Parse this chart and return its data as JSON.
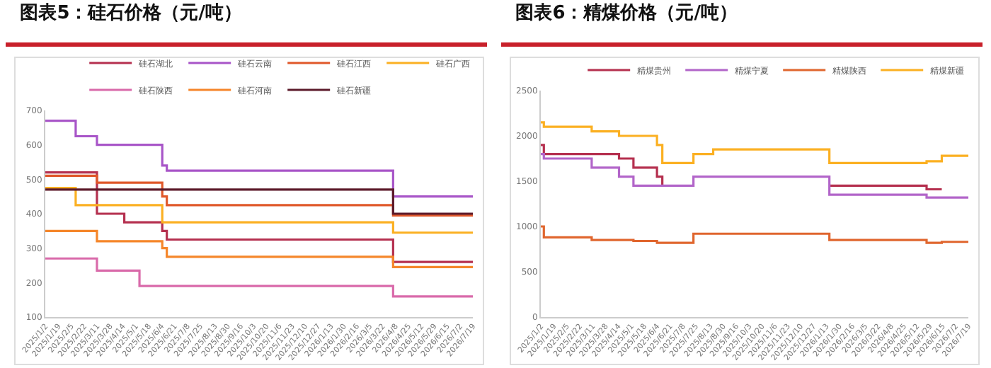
{
  "chart_data": [
    {
      "type": "step",
      "title": "图表5：硅石价格（元/吨）",
      "legend": "top",
      "marker": "none",
      "xlim": [
        "2025-01-02",
        "2026-07-19"
      ],
      "ylim": [
        100,
        700
      ],
      "yticks": [
        100,
        200,
        300,
        400,
        500,
        600,
        700
      ],
      "xticks": [
        {
          "value": "2025-01-02",
          "label": "2025/1/2"
        },
        {
          "value": "2025-01-19",
          "label": "2025/1/19"
        },
        {
          "value": "2025-02-05",
          "label": "2025/2/5"
        },
        {
          "value": "2025-02-22",
          "label": "2025/2/22"
        },
        {
          "value": "2025-03-11",
          "label": "2025/3/11"
        },
        {
          "value": "2025-03-28",
          "label": "2025/3/28"
        },
        {
          "value": "2025-04-14",
          "label": "2025/4/14"
        },
        {
          "value": "2025-05-01",
          "label": "2025/5/1"
        },
        {
          "value": "2025-05-18",
          "label": "2025/5/18"
        },
        {
          "value": "2025-06-04",
          "label": "2025/6/4"
        },
        {
          "value": "2025-06-21",
          "label": "2025/6/21"
        },
        {
          "value": "2025-07-08",
          "label": "2025/7/8"
        },
        {
          "value": "2025-07-25",
          "label": "2025/7/25"
        },
        {
          "value": "2025-08-13",
          "label": "2025/8/13"
        },
        {
          "value": "2025-08-30",
          "label": "2025/8/30"
        },
        {
          "value": "2025-09-16",
          "label": "2025/9/16"
        },
        {
          "value": "2025-10-03",
          "label": "2025/10/3"
        },
        {
          "value": "2025-10-20",
          "label": "2025/10/20"
        },
        {
          "value": "2025-11-06",
          "label": "2025/11/6"
        },
        {
          "value": "2025-11-23",
          "label": "2025/11/23"
        },
        {
          "value": "2025-12-10",
          "label": "2025/12/10"
        },
        {
          "value": "2025-12-27",
          "label": "2025/12/27"
        },
        {
          "value": "2026-01-13",
          "label": "2026/1/13"
        },
        {
          "value": "2026-01-30",
          "label": "2026/1/30"
        },
        {
          "value": "2026-02-16",
          "label": "2026/2/16"
        },
        {
          "value": "2026-03-05",
          "label": "2026/3/5"
        },
        {
          "value": "2026-03-22",
          "label": "2026/3/22"
        },
        {
          "value": "2026-04-08",
          "label": "2026/4/8"
        },
        {
          "value": "2026-04-25",
          "label": "2026/4/25"
        },
        {
          "value": "2026-05-12",
          "label": "2026/5/12"
        },
        {
          "value": "2026-05-29",
          "label": "2026/5/29"
        },
        {
          "value": "2026-06-15",
          "label": "2026/6/15"
        },
        {
          "value": "2026-07-02",
          "label": "2026/7/2"
        },
        {
          "value": "2026-07-19",
          "label": "2026/7/19"
        }
      ],
      "series": [
        {
          "name": "硅石湖北",
          "color": "#b5304f",
          "x": [
            "2025-01-02",
            "2025-03-11",
            "2025-04-16",
            "2025-06-05",
            "2025-06-11",
            "2026-04-05",
            "2026-07-19"
          ],
          "values": [
            520,
            400,
            375,
            350,
            325,
            260,
            260
          ]
        },
        {
          "name": "硅石云南",
          "color": "#a855c8",
          "x": [
            "2025-01-02",
            "2025-02-11",
            "2025-03-11",
            "2025-06-05",
            "2025-06-11",
            "2026-04-05",
            "2026-07-19"
          ],
          "values": [
            670,
            625,
            600,
            540,
            525,
            450,
            450
          ]
        },
        {
          "name": "硅石江西",
          "color": "#e0582a",
          "x": [
            "2025-01-02",
            "2025-03-11",
            "2025-06-05",
            "2025-06-11",
            "2026-04-05",
            "2026-07-19"
          ],
          "values": [
            510,
            490,
            450,
            425,
            395,
            395
          ]
        },
        {
          "name": "硅石广西",
          "color": "#fbb022",
          "x": [
            "2025-01-02",
            "2025-02-11",
            "2025-06-05",
            "2026-04-05",
            "2026-07-19"
          ],
          "values": [
            475,
            425,
            375,
            345,
            345
          ]
        },
        {
          "name": "硅石陕西",
          "color": "#d96aaa",
          "x": [
            "2025-01-02",
            "2025-03-11",
            "2025-05-06",
            "2026-04-05",
            "2026-07-19"
          ],
          "values": [
            270,
            235,
            190,
            160,
            160
          ]
        },
        {
          "name": "硅石河南",
          "color": "#f5862a",
          "x": [
            "2025-01-02",
            "2025-03-11",
            "2025-06-05",
            "2025-06-11",
            "2026-04-05",
            "2026-07-19"
          ],
          "values": [
            350,
            320,
            300,
            275,
            245,
            245
          ]
        },
        {
          "name": "硅石新疆",
          "color": "#5c1a2a",
          "x": [
            "2025-01-02",
            "2026-04-05",
            "2026-07-19"
          ],
          "values": [
            470,
            400,
            400
          ]
        }
      ]
    },
    {
      "type": "step",
      "title": "图表6：精煤价格（元/吨）",
      "legend": "top",
      "marker": "none",
      "xlim": [
        "2025-01-02",
        "2026-07-19"
      ],
      "ylim": [
        0,
        2500
      ],
      "yticks": [
        0,
        500,
        1000,
        1500,
        2000,
        2500
      ],
      "xticks": [
        {
          "value": "2025-01-02",
          "label": "2025/1/2"
        },
        {
          "value": "2025-01-19",
          "label": "2025/1/19"
        },
        {
          "value": "2025-02-05",
          "label": "2025/2/5"
        },
        {
          "value": "2025-02-22",
          "label": "2025/2/22"
        },
        {
          "value": "2025-03-11",
          "label": "2025/3/11"
        },
        {
          "value": "2025-03-28",
          "label": "2025/3/28"
        },
        {
          "value": "2025-04-14",
          "label": "2025/4/14"
        },
        {
          "value": "2025-05-01",
          "label": "2025/5/1"
        },
        {
          "value": "2025-05-18",
          "label": "2025/5/18"
        },
        {
          "value": "2025-06-04",
          "label": "2025/6/4"
        },
        {
          "value": "2025-06-21",
          "label": "2025/6/21"
        },
        {
          "value": "2025-07-08",
          "label": "2025/7/8"
        },
        {
          "value": "2025-07-25",
          "label": "2025/7/25"
        },
        {
          "value": "2025-08-13",
          "label": "2025/8/13"
        },
        {
          "value": "2025-08-30",
          "label": "2025/8/30"
        },
        {
          "value": "2025-09-16",
          "label": "2025/9/16"
        },
        {
          "value": "2025-10-03",
          "label": "2025/10/3"
        },
        {
          "value": "2025-10-20",
          "label": "2025/10/20"
        },
        {
          "value": "2025-11-06",
          "label": "2025/11/6"
        },
        {
          "value": "2025-11-23",
          "label": "2025/11/23"
        },
        {
          "value": "2025-12-10",
          "label": "2025/12/10"
        },
        {
          "value": "2025-12-27",
          "label": "2025/12/27"
        },
        {
          "value": "2026-01-13",
          "label": "2026/1/13"
        },
        {
          "value": "2026-01-30",
          "label": "2026/1/30"
        },
        {
          "value": "2026-02-16",
          "label": "2026/2/16"
        },
        {
          "value": "2026-03-05",
          "label": "2026/3/5"
        },
        {
          "value": "2026-03-22",
          "label": "2026/3/22"
        },
        {
          "value": "2026-04-08",
          "label": "2026/4/8"
        },
        {
          "value": "2026-04-25",
          "label": "2026/4/25"
        },
        {
          "value": "2026-05-12",
          "label": "2026/5/12"
        },
        {
          "value": "2026-05-29",
          "label": "2026/5/29"
        },
        {
          "value": "2026-06-15",
          "label": "2026/6/15"
        },
        {
          "value": "2026-07-02",
          "label": "2026/7/2"
        },
        {
          "value": "2026-07-19",
          "label": "2026/7/19"
        }
      ],
      "series": [
        {
          "name": "精煤贵州",
          "color": "#b5304f",
          "x": [
            "2025-01-02",
            "2025-01-06",
            "2025-04-15",
            "2025-05-04",
            "2025-06-04",
            "2025-06-11",
            "2025-07-22",
            "2026-01-17",
            "2026-05-25",
            "2026-06-14"
          ],
          "values": [
            1900,
            1800,
            1750,
            1650,
            1550,
            1450,
            null,
            1450,
            1410,
            1410
          ]
        },
        {
          "name": "精煤宁夏",
          "color": "#b265c9",
          "x": [
            "2025-01-02",
            "2025-01-06",
            "2025-03-10",
            "2025-04-15",
            "2025-05-04",
            "2025-07-22",
            "2026-01-17",
            "2026-05-25",
            "2026-07-19"
          ],
          "values": [
            1800,
            1750,
            1650,
            1550,
            1450,
            1550,
            1350,
            1320,
            1320
          ]
        },
        {
          "name": "精煤陕西",
          "color": "#e0662e",
          "x": [
            "2025-01-02",
            "2025-01-06",
            "2025-03-10",
            "2025-05-04",
            "2025-06-04",
            "2025-07-22",
            "2026-01-17",
            "2026-05-25",
            "2026-06-14",
            "2026-07-19"
          ],
          "values": [
            1000,
            880,
            850,
            840,
            820,
            920,
            850,
            820,
            830,
            830
          ]
        },
        {
          "name": "精煤新疆",
          "color": "#fbb022",
          "x": [
            "2025-01-02",
            "2025-01-06",
            "2025-03-10",
            "2025-04-15",
            "2025-06-04",
            "2025-06-11",
            "2025-07-22",
            "2025-08-17",
            "2026-01-17",
            "2026-05-25",
            "2026-06-14",
            "2026-07-19"
          ],
          "values": [
            2150,
            2100,
            2050,
            2000,
            1900,
            1700,
            1800,
            1850,
            1700,
            1720,
            1780,
            1780
          ]
        }
      ]
    }
  ]
}
